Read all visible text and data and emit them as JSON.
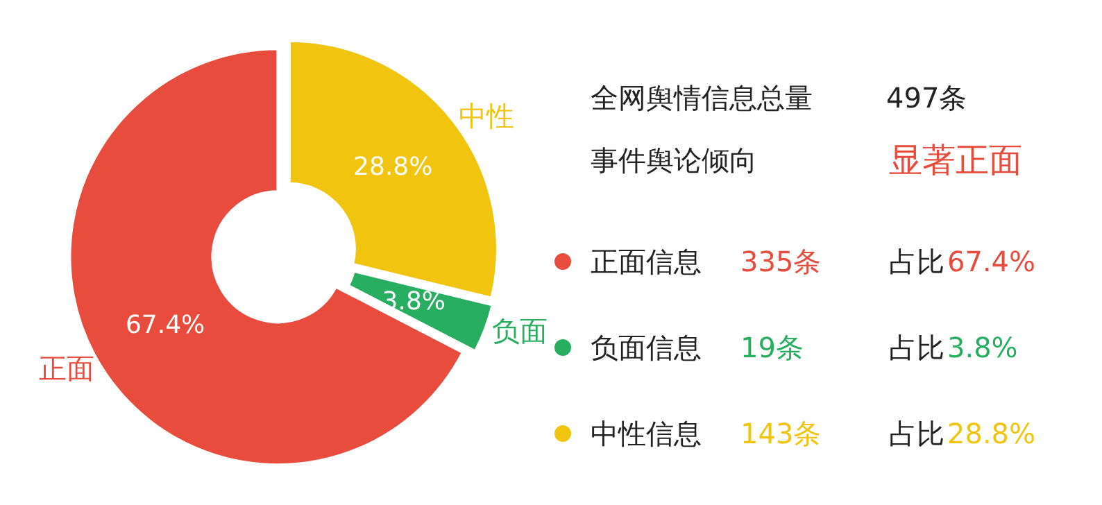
{
  "chart_data": [
    {
      "type": "donut",
      "categories": [
        "中性",
        "负面",
        "正面"
      ],
      "values": [
        28.8,
        3.8,
        67.4
      ],
      "colors": [
        "#f1c40f",
        "#27ae60",
        "#e74c3c"
      ],
      "value_labels": [
        "28.8%",
        "3.8%",
        "67.4%"
      ]
    },
    {
      "type": "other",
      "colors": [
        "#e74c3c",
        "#27ae60",
        "#f1c40f"
      ],
      "annotations": [
        "全网舆情信息总量",
        "497条",
        "事件舆论倾向",
        "显著正面",
        "正面信息",
        "335条",
        "占比",
        "负面信息",
        "19条",
        "占比",
        "中性信息",
        "143条",
        "占比"
      ]
    }
  ]
}
